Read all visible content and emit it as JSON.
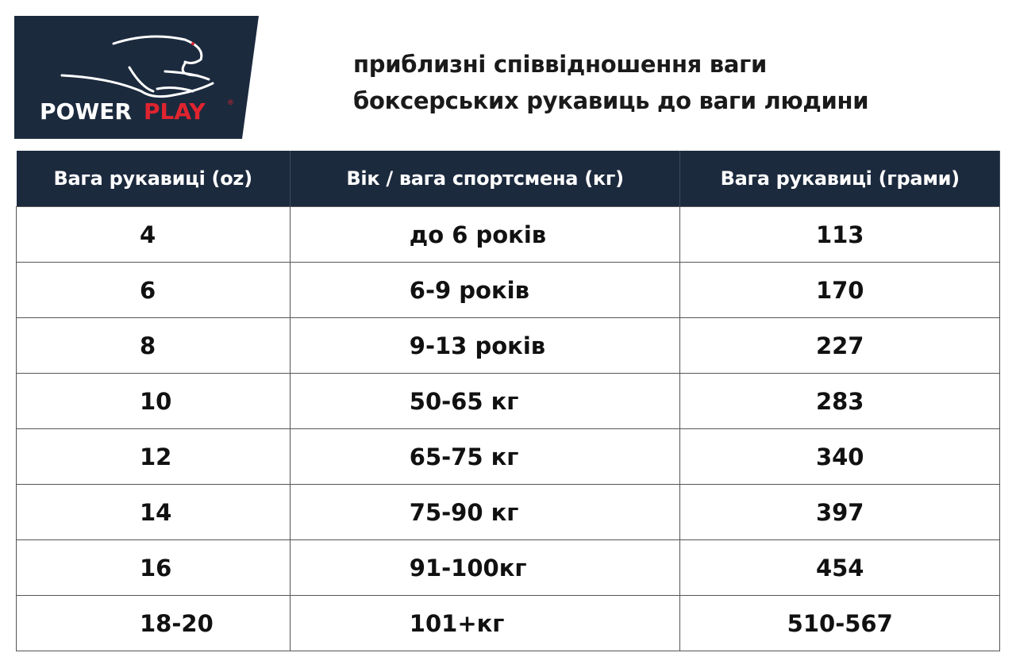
{
  "logo": {
    "brand_white": "POWER",
    "brand_red": "PLAY",
    "registered": "®",
    "bg": "#1c2a3e",
    "red": "#e0242f"
  },
  "title": {
    "line1": "приблизні співвідношення ваги",
    "line2": "боксерських рукавиць до ваги людини"
  },
  "table": {
    "headers": [
      "Вага рукавиці (oz)",
      "Вік / вага спортсмена (кг)",
      "Вага рукавиці (грами)"
    ],
    "rows": [
      [
        "4",
        "до 6 років",
        "113"
      ],
      [
        "6",
        "6-9 років",
        "170"
      ],
      [
        "8",
        "9-13 років",
        "227"
      ],
      [
        "10",
        "50-65 кг",
        "283"
      ],
      [
        "12",
        "65-75 кг",
        "340"
      ],
      [
        "14",
        "75-90 кг",
        "397"
      ],
      [
        "16",
        "91-100кг",
        "454"
      ],
      [
        "18-20",
        "101+кг",
        "510-567"
      ]
    ]
  }
}
